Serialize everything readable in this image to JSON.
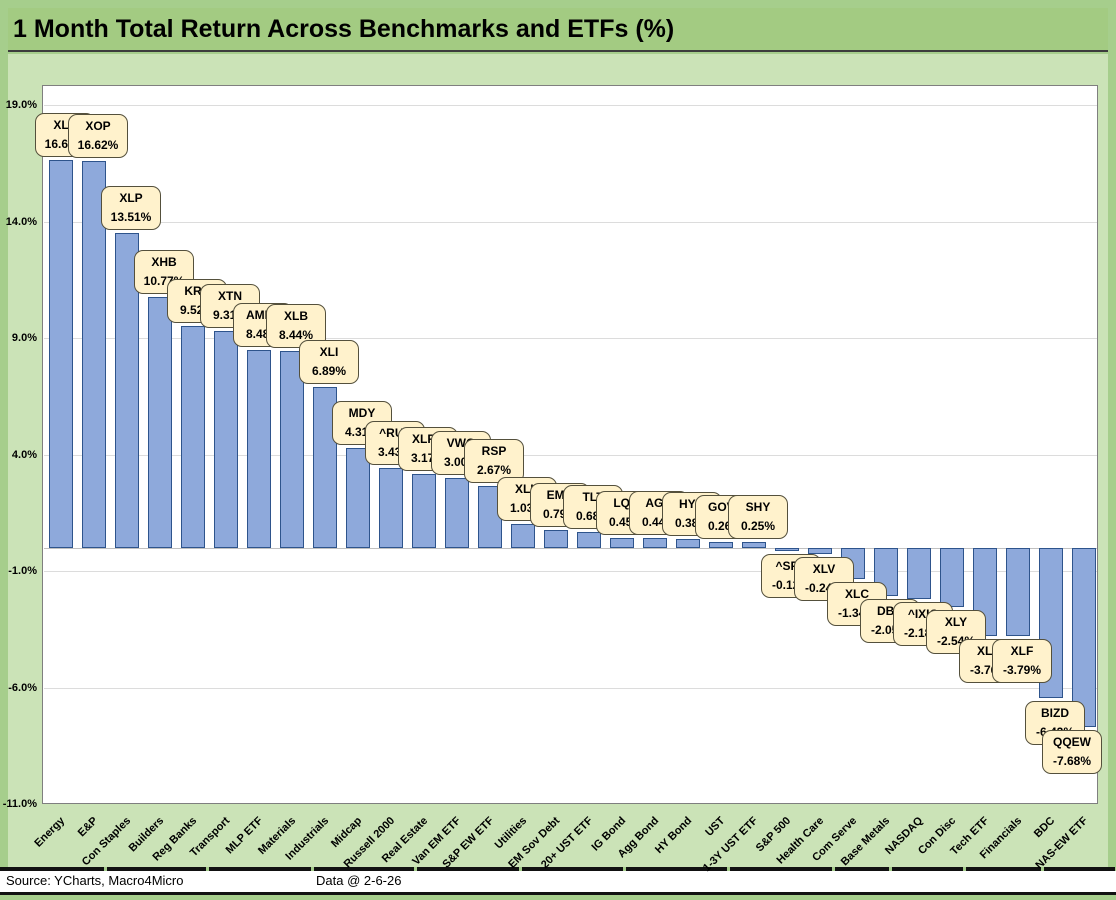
{
  "title": "1 Month Total Return Across Benchmarks and ETFs (%)",
  "footer": {
    "source": "Source: YCharts, Macro4Micro",
    "data_date": "Data @ 2-6-26"
  },
  "colors": {
    "frame_green": "#A6CE8C",
    "title_bar_green": "#A3CB82",
    "body_green": "#CBE3B7",
    "bar_fill": "#8EA9DB",
    "bar_border": "#2E548C",
    "callout_fill": "#FFF2CC",
    "callout_border": "#54503C",
    "plot_background": "#FFFFFF",
    "gridline": "#DCDCDC"
  },
  "chart_data": {
    "type": "bar",
    "title": "1 Month Total Return Across Benchmarks and ETFs (%)",
    "xlabel": "",
    "ylabel": "",
    "ylim": [
      -11,
      19.5
    ],
    "grid": true,
    "legend": "none",
    "y_ticks": [
      {
        "value": 19,
        "label": "19.0%"
      },
      {
        "value": 14,
        "label": "14.0%"
      },
      {
        "value": 9,
        "label": "9.0%"
      },
      {
        "value": 4,
        "label": "4.0%"
      },
      {
        "value": -1,
        "label": "-1.0%"
      },
      {
        "value": -6,
        "label": "-6.0%"
      },
      {
        "value": -11,
        "label": "-11.0%"
      }
    ],
    "categories": [
      "Energy",
      "E&P",
      "Con Staples",
      "Builders",
      "Reg Banks",
      "Transport",
      "MLP ETF",
      "Materials",
      "Industrials",
      "Midcap",
      "Russell 2000",
      "Real Estate",
      "Van EM ETF",
      "S&P EW ETF",
      "Utilities",
      "EM Sov Debt",
      "20+ UST ETF",
      "IG Bond",
      "Agg Bond",
      "HY Bond",
      "UST",
      "1-3Y UST ETF",
      "S&P 500",
      "Health Care",
      "Com Serve",
      "Base Metals",
      "NASDAQ",
      "Con Disc",
      "Tech ETF",
      "Financials",
      "BDC",
      "NAS-EW ETF"
    ],
    "tickers": [
      "XLE",
      "XOP",
      "XLP",
      "XHB",
      "KRE",
      "XTN",
      "AMLP",
      "XLB",
      "XLI",
      "MDY",
      "^RUT",
      "XLRE",
      "VWO",
      "RSP",
      "XLU",
      "EMB",
      "TLT",
      "LQD",
      "AGG",
      "HYG",
      "GOVT",
      "SHY",
      "^SPX",
      "XLV",
      "XLC",
      "DBB",
      "^IXIC",
      "XLY",
      "XLK",
      "XLF",
      "BIZD",
      "QQEW"
    ],
    "values": [
      16.67,
      16.62,
      13.51,
      10.77,
      9.52,
      9.31,
      8.48,
      8.44,
      6.89,
      4.31,
      3.43,
      3.17,
      3.0,
      2.67,
      1.03,
      0.79,
      0.68,
      0.45,
      0.44,
      0.38,
      0.26,
      0.25,
      -0.12,
      -0.24,
      -1.34,
      -2.05,
      -2.18,
      -2.54,
      -3.76,
      -3.79,
      -6.42,
      -7.68
    ],
    "value_labels": [
      "16.67%",
      "16.62%",
      "13.51%",
      "10.77%",
      "9.52%",
      "9.31%",
      "8.48%",
      "8.44%",
      "6.89%",
      "4.31%",
      "3.43%",
      "3.17%",
      "3.00%",
      "2.67%",
      "1.03%",
      "0.79%",
      "0.68%",
      "0.45%",
      "0.44%",
      "0.38%",
      "0.26%",
      "0.25%",
      "-0.12%",
      "-0.24%",
      "-1.34%",
      "-2.05%",
      "-2.18%",
      "-2.54%",
      "-3.76%",
      "-3.79%",
      "-6.42%",
      "-7.68%"
    ]
  }
}
